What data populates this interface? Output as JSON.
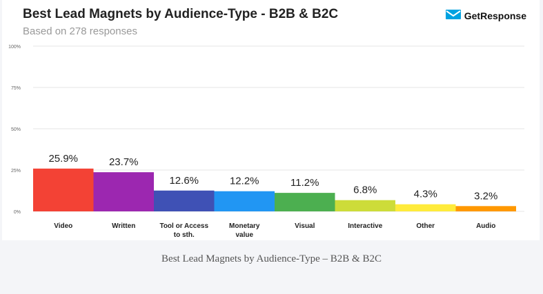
{
  "header": {
    "title": "Best Lead Magnets by Audience-Type - B2B & B2C",
    "subtitle": "Based on 278 responses",
    "brand": "GetResponse",
    "brand_icon": "envelope-icon",
    "brand_color": "#00a2e1"
  },
  "caption": "Best Lead Magnets by Audience-Type – B2B & B2C",
  "chart_data": {
    "type": "bar",
    "title": "Best Lead Magnets by Audience-Type - B2B & B2C",
    "subtitle": "Based on 278 responses",
    "xlabel": "",
    "ylabel": "",
    "ylim": [
      0,
      100
    ],
    "yticks": [
      "100%",
      "75%",
      "50%",
      "25%",
      "0%"
    ],
    "ytick_values": [
      100,
      75,
      50,
      25,
      0
    ],
    "grid": true,
    "categories": [
      [
        "Video"
      ],
      [
        "Written"
      ],
      [
        "Tool or Access",
        "to sth."
      ],
      [
        "Monetary",
        "value"
      ],
      [
        "Visual"
      ],
      [
        "Interactive"
      ],
      [
        "Other"
      ],
      [
        "Audio"
      ]
    ],
    "values": [
      25.9,
      23.7,
      12.6,
      12.2,
      11.2,
      6.8,
      4.3,
      3.2
    ],
    "value_labels": [
      "25.9%",
      "23.7%",
      "12.6%",
      "12.2%",
      "11.2%",
      "6.8%",
      "4.3%",
      "3.2%"
    ],
    "colors": [
      "#f34235",
      "#9c27b0",
      "#3f51b5",
      "#2196f3",
      "#4caf50",
      "#cddc39",
      "#ffeb3b",
      "#ff9800"
    ]
  }
}
